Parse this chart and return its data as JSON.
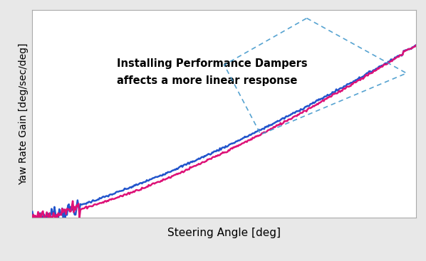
{
  "title": "",
  "xlabel": "Steering Angle [deg]",
  "ylabel": "Yaw Rate Gain [deg/sec/deg]",
  "annotation_line1": "Installing Performance Dampers",
  "annotation_line2": "affects a more linear response",
  "annotation_fontsize": 10.5,
  "annotation_fontweight": "bold",
  "xlabel_fontsize": 11,
  "ylabel_fontsize": 10,
  "line_blue_color": "#2255cc",
  "line_pink_color": "#dd1177",
  "dashed_box_color": "#4499cc",
  "background_color": "#e8e8e8",
  "plot_bg_color": "#ffffff",
  "grid_color": "#b0b0b0",
  "grid_linestyle": "--"
}
